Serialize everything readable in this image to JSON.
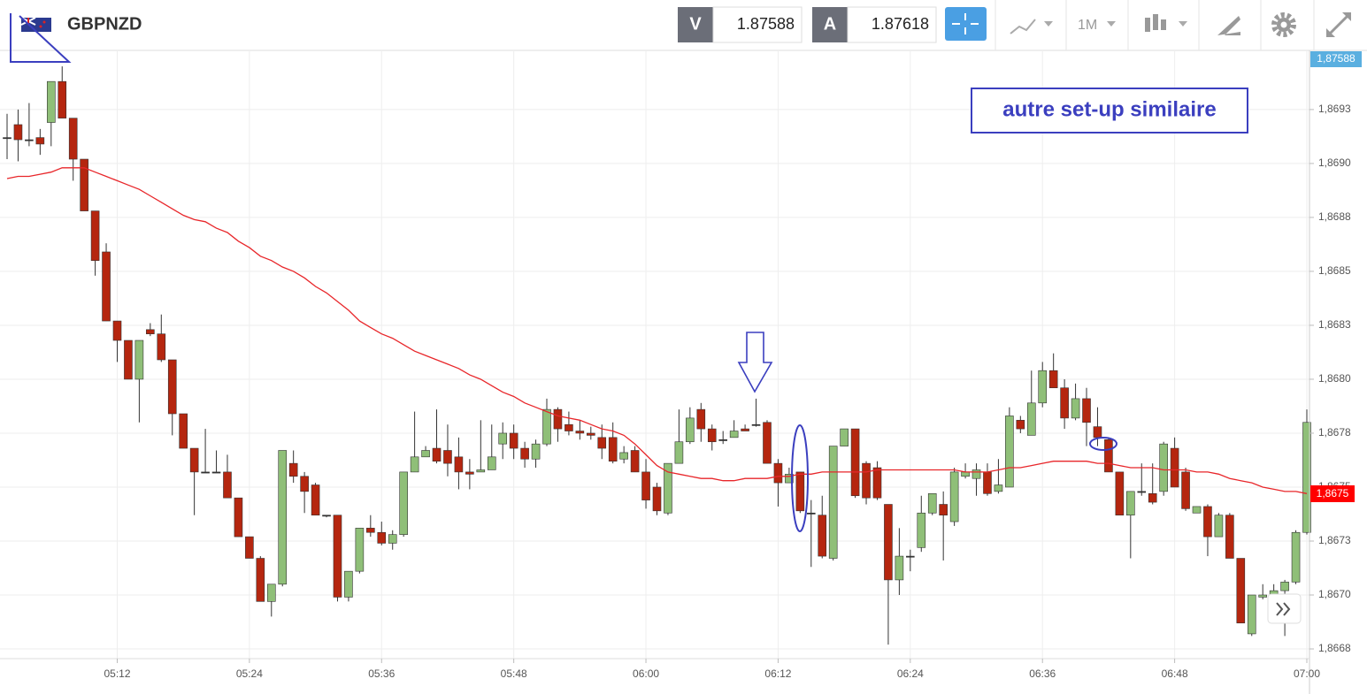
{
  "header": {
    "symbol": "GBPNZD",
    "bid_label": "V",
    "bid": "1.87588",
    "ask_label": "A",
    "ask": "1.87618",
    "timeframe": "1M"
  },
  "chart_data": {
    "type": "candlestick",
    "annotation": "autre set-up similaire",
    "last_price_tag": "1,87588",
    "line_tag": "1,8675",
    "up_color": "#8fbf78",
    "down_color": "#b5260f",
    "doji_color": "#333333",
    "categories": [
      null,
      null,
      null,
      null,
      null,
      null,
      null,
      null,
      null,
      null,
      "05:12",
      null,
      null,
      null,
      null,
      null,
      null,
      null,
      null,
      null,
      null,
      null,
      "05:24",
      null,
      null,
      null,
      null,
      null,
      null,
      null,
      null,
      null,
      null,
      null,
      "05:36",
      null,
      null,
      null,
      null,
      null,
      null,
      null,
      null,
      null,
      null,
      null,
      "05:48",
      null,
      null,
      null,
      null,
      null,
      null,
      null,
      null,
      null,
      null,
      null,
      "06:00",
      null,
      null,
      null,
      null,
      null,
      null,
      null,
      null,
      null,
      null,
      null,
      "06:12",
      null,
      null,
      null,
      null,
      null,
      null,
      null,
      null,
      null,
      null,
      null,
      "06:24",
      null,
      null,
      null,
      null,
      null,
      null,
      null,
      null,
      null,
      null,
      null,
      "06:36",
      null,
      null,
      null,
      null,
      null,
      null,
      null,
      null,
      null,
      null,
      null,
      "06:48",
      null,
      null,
      null,
      null,
      null,
      null,
      null,
      null,
      null,
      null,
      null,
      "07:00"
    ],
    "open": [
      1.86912,
      1.86918,
      1.86911,
      1.86912,
      1.86919,
      1.86938,
      1.86921,
      1.86902,
      1.86878,
      1.86859,
      1.86827,
      1.86818,
      1.868,
      1.86823,
      1.86821,
      1.86809,
      1.86784,
      1.86768,
      1.86757,
      1.86757,
      1.86757,
      1.86745,
      1.86727,
      1.86717,
      1.86697,
      1.86705,
      1.86761,
      1.86755,
      1.86751,
      1.86737,
      1.86737,
      1.86699,
      1.86711,
      1.86731,
      1.86729,
      1.86724,
      1.86728,
      1.86757,
      1.86764,
      1.86768,
      1.86767,
      1.86764,
      1.86757,
      1.86757,
      1.86758,
      1.8677,
      1.86775,
      1.86768,
      1.86763,
      1.8677,
      1.86786,
      1.86779,
      1.86776,
      1.86775,
      1.86773,
      1.86773,
      1.86763,
      1.86767,
      1.86757,
      1.8675,
      1.86738,
      1.86761,
      1.86771,
      1.86786,
      1.86777,
      1.86772,
      1.86773,
      1.86777,
      1.86779,
      1.8678,
      1.86761,
      1.86752,
      1.86757,
      1.86738,
      1.86737,
      1.86717,
      1.86769,
      1.86777,
      1.86761,
      1.86759,
      1.86742,
      1.86707,
      1.86718,
      1.86722,
      1.86738,
      1.86742,
      1.86734,
      1.86755,
      1.86754,
      1.86757,
      1.86748,
      1.8675,
      1.86781,
      1.86774,
      1.86789,
      1.86804,
      1.86796,
      1.86782,
      1.86791,
      1.86778,
      1.86772,
      1.86757,
      1.86737,
      1.86748,
      1.86747,
      1.86748,
      1.86768,
      1.86757,
      1.86738,
      1.86741,
      1.86727,
      1.86737,
      1.86717,
      1.86682,
      1.86699,
      1.867,
      1.86702,
      1.86706,
      1.86729
    ],
    "high": [
      1.86923,
      1.86925,
      1.86928,
      1.86916,
      1.86938,
      1.86945,
      1.86921,
      1.86902,
      1.86878,
      1.86863,
      1.86827,
      1.86818,
      1.86818,
      1.86826,
      1.8683,
      1.86809,
      1.86784,
      1.86768,
      1.86777,
      1.86767,
      1.86765,
      1.86745,
      1.86727,
      1.86718,
      1.86705,
      1.86767,
      1.86767,
      1.86757,
      1.86752,
      1.86737,
      1.86737,
      1.86711,
      1.86731,
      1.86737,
      1.86734,
      1.8673,
      1.86757,
      1.86785,
      1.86769,
      1.86786,
      1.86779,
      1.86773,
      1.86763,
      1.86781,
      1.86779,
      1.8678,
      1.86779,
      1.86771,
      1.86772,
      1.86791,
      1.86787,
      1.86785,
      1.86781,
      1.86778,
      1.86779,
      1.8678,
      1.86769,
      1.86769,
      1.86763,
      1.86752,
      1.86761,
      1.86786,
      1.86787,
      1.86789,
      1.86779,
      1.86776,
      1.86781,
      1.86779,
      1.86791,
      1.86781,
      1.86763,
      1.86759,
      1.86757,
      1.86744,
      1.86746,
      1.86769,
      1.86777,
      1.86777,
      1.86762,
      1.86762,
      1.86742,
      1.86731,
      1.86721,
      1.86746,
      1.86747,
      1.86748,
      1.86759,
      1.86761,
      1.86761,
      1.86761,
      1.86763,
      1.86787,
      1.86783,
      1.86804,
      1.86808,
      1.86812,
      1.868,
      1.86798,
      1.86796,
      1.86787,
      1.86773,
      1.86757,
      1.86748,
      1.86761,
      1.86761,
      1.86771,
      1.86773,
      1.86759,
      1.86741,
      1.86742,
      1.86738,
      1.86738,
      1.86717,
      1.867,
      1.86705,
      1.86705,
      1.86707,
      1.8673,
      1.86786
    ],
    "low": [
      1.86902,
      1.86901,
      1.86908,
      1.86904,
      1.86908,
      1.86921,
      1.86892,
      1.86878,
      1.86848,
      1.86827,
      1.86808,
      1.868,
      1.8678,
      1.8682,
      1.86808,
      1.86774,
      1.86768,
      1.86737,
      1.86757,
      1.86757,
      1.86745,
      1.86727,
      1.86717,
      1.86697,
      1.8669,
      1.86704,
      1.86752,
      1.86738,
      1.86737,
      1.86736,
      1.86697,
      1.86697,
      1.8671,
      1.86727,
      1.86723,
      1.86721,
      1.86727,
      1.86757,
      1.86764,
      1.86761,
      1.86755,
      1.86749,
      1.86749,
      1.86757,
      1.86758,
      1.86763,
      1.86763,
      1.86759,
      1.86759,
      1.86769,
      1.86771,
      1.86774,
      1.86772,
      1.86772,
      1.86763,
      1.86761,
      1.86761,
      1.86757,
      1.8674,
      1.86737,
      1.86737,
      1.86761,
      1.8677,
      1.86771,
      1.86767,
      1.8677,
      1.86773,
      1.86776,
      1.86778,
      1.86761,
      1.86741,
      1.86752,
      1.86738,
      1.86713,
      1.86717,
      1.86716,
      1.86769,
      1.86745,
      1.86742,
      1.86744,
      1.86677,
      1.867,
      1.86711,
      1.8672,
      1.86737,
      1.86716,
      1.86732,
      1.86754,
      1.86746,
      1.86746,
      1.86747,
      1.8675,
      1.86775,
      1.86774,
      1.86787,
      1.86796,
      1.86777,
      1.86781,
      1.86769,
      1.86769,
      1.86757,
      1.86737,
      1.86717,
      1.86746,
      1.86742,
      1.86746,
      1.8675,
      1.86739,
      1.86738,
      1.86718,
      1.86727,
      1.86717,
      1.86687,
      1.86681,
      1.86698,
      1.86697,
      1.86681,
      1.86705,
      1.86728
    ],
    "close": [
      1.86912,
      1.86911,
      1.86911,
      1.86909,
      1.86938,
      1.86921,
      1.86902,
      1.86878,
      1.86855,
      1.86827,
      1.86818,
      1.868,
      1.86818,
      1.86821,
      1.86809,
      1.86784,
      1.86768,
      1.86757,
      1.86757,
      1.86757,
      1.86745,
      1.86727,
      1.86717,
      1.86697,
      1.86705,
      1.86767,
      1.86755,
      1.86748,
      1.86737,
      1.86737,
      1.86699,
      1.86711,
      1.86731,
      1.86729,
      1.86724,
      1.86728,
      1.86757,
      1.86764,
      1.86767,
      1.86762,
      1.86761,
      1.86757,
      1.86756,
      1.86758,
      1.86764,
      1.86775,
      1.86768,
      1.86763,
      1.8677,
      1.86786,
      1.86777,
      1.86776,
      1.86775,
      1.86774,
      1.86768,
      1.86762,
      1.86766,
      1.86757,
      1.86744,
      1.86739,
      1.86761,
      1.86771,
      1.86782,
      1.86777,
      1.86771,
      1.86772,
      1.86776,
      1.86776,
      1.86779,
      1.86761,
      1.86752,
      1.86756,
      1.86739,
      1.86738,
      1.86718,
      1.86769,
      1.86777,
      1.86746,
      1.86745,
      1.86745,
      1.86707,
      1.86718,
      1.86718,
      1.86738,
      1.86747,
      1.86737,
      1.86757,
      1.86757,
      1.86758,
      1.86747,
      1.86751,
      1.86783,
      1.86777,
      1.86789,
      1.86804,
      1.86796,
      1.86782,
      1.86791,
      1.8678,
      1.86773,
      1.86757,
      1.86737,
      1.86748,
      1.86748,
      1.86743,
      1.8677,
      1.8675,
      1.8674,
      1.86741,
      1.86727,
      1.86737,
      1.86717,
      1.86687,
      1.867,
      1.867,
      1.86702,
      1.86706,
      1.86729,
      1.8678
    ],
    "overlay": {
      "color": "#e8262a",
      "values": [
        1.86893,
        1.86894,
        1.86894,
        1.86895,
        1.86896,
        1.86898,
        1.86898,
        1.86898,
        1.86896,
        1.86894,
        1.86892,
        1.8689,
        1.86888,
        1.86885,
        1.86882,
        1.86879,
        1.86876,
        1.86874,
        1.86873,
        1.8687,
        1.86868,
        1.86864,
        1.86861,
        1.86857,
        1.86855,
        1.86852,
        1.8685,
        1.86847,
        1.86843,
        1.8684,
        1.86836,
        1.86832,
        1.86827,
        1.86824,
        1.86821,
        1.86819,
        1.86816,
        1.86813,
        1.86811,
        1.86809,
        1.86807,
        1.86805,
        1.86802,
        1.868,
        1.86797,
        1.86794,
        1.86792,
        1.86789,
        1.86787,
        1.86785,
        1.86783,
        1.86782,
        1.86781,
        1.86779,
        1.86777,
        1.86776,
        1.86774,
        1.8677,
        1.86765,
        1.8676,
        1.86757,
        1.86756,
        1.86755,
        1.86754,
        1.86754,
        1.86753,
        1.86753,
        1.86754,
        1.86754,
        1.86754,
        1.86755,
        1.86755,
        1.86756,
        1.86756,
        1.86757,
        1.86757,
        1.86757,
        1.86757,
        1.86757,
        1.86758,
        1.86758,
        1.86758,
        1.86758,
        1.86758,
        1.86758,
        1.86758,
        1.86758,
        1.86757,
        1.86757,
        1.86757,
        1.86758,
        1.86759,
        1.86759,
        1.8676,
        1.86761,
        1.86762,
        1.86762,
        1.86762,
        1.86762,
        1.86761,
        1.86761,
        1.8676,
        1.86759,
        1.86759,
        1.86759,
        1.86758,
        1.86758,
        1.86758,
        1.86757,
        1.86757,
        1.86756,
        1.86754,
        1.86753,
        1.86752,
        1.8675,
        1.86749,
        1.86748,
        1.86748,
        1.86747
      ]
    },
    "ylim": [
      1.866705,
      1.86952
    ],
    "yticks": [
      {
        "value": 1.86925,
        "label": "1,8693"
      },
      {
        "value": 1.869,
        "label": "1,8690"
      },
      {
        "value": 1.86875,
        "label": "1,8688"
      },
      {
        "value": 1.8685,
        "label": "1,8685"
      },
      {
        "value": 1.86825,
        "label": "1,8683"
      },
      {
        "value": 1.868,
        "label": "1,8680"
      },
      {
        "value": 1.86775,
        "label": "1,8678"
      },
      {
        "value": 1.8675,
        "label": "1,8675"
      },
      {
        "value": 1.86725,
        "label": "1,8673"
      },
      {
        "value": 1.867,
        "label": "1,8670"
      },
      {
        "value": 1.86675,
        "label": "1,8668"
      }
    ],
    "grid": true
  }
}
